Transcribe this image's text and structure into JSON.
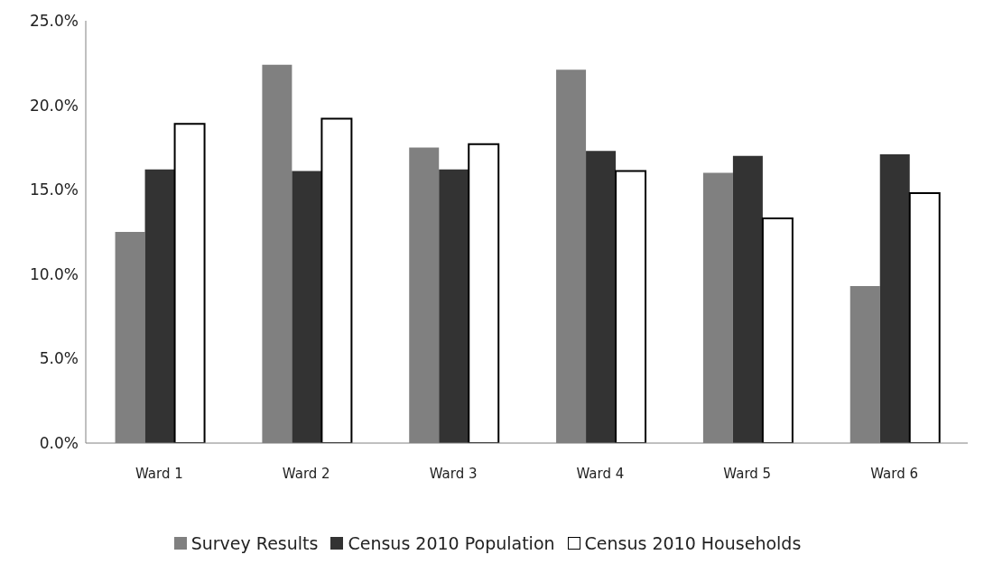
{
  "chart_data": {
    "type": "bar",
    "categories": [
      "Ward 1",
      "Ward 2",
      "Ward 3",
      "Ward 4",
      "Ward 5",
      "Ward 6"
    ],
    "series": [
      {
        "name": "Survey Results",
        "color": "#808080",
        "values": [
          12.5,
          22.4,
          17.5,
          22.1,
          16.0,
          9.3
        ]
      },
      {
        "name": "Census 2010 Population",
        "color": "#333333",
        "values": [
          16.2,
          16.1,
          16.2,
          17.3,
          17.0,
          17.1
        ]
      },
      {
        "name": "Census 2010 Households",
        "color": "#ffffff",
        "values": [
          18.9,
          19.2,
          17.7,
          16.1,
          13.3,
          14.8
        ]
      }
    ],
    "ylim": [
      0,
      25
    ],
    "yticks": [
      {
        "value": 0,
        "label": "0.0%"
      },
      {
        "value": 5,
        "label": "5.0%"
      },
      {
        "value": 10,
        "label": "10.0%"
      },
      {
        "value": 15,
        "label": "15.0%"
      },
      {
        "value": 20,
        "label": "20.0%"
      },
      {
        "value": 25,
        "label": "25.0%"
      }
    ],
    "grid": false,
    "legend": "bottom"
  }
}
